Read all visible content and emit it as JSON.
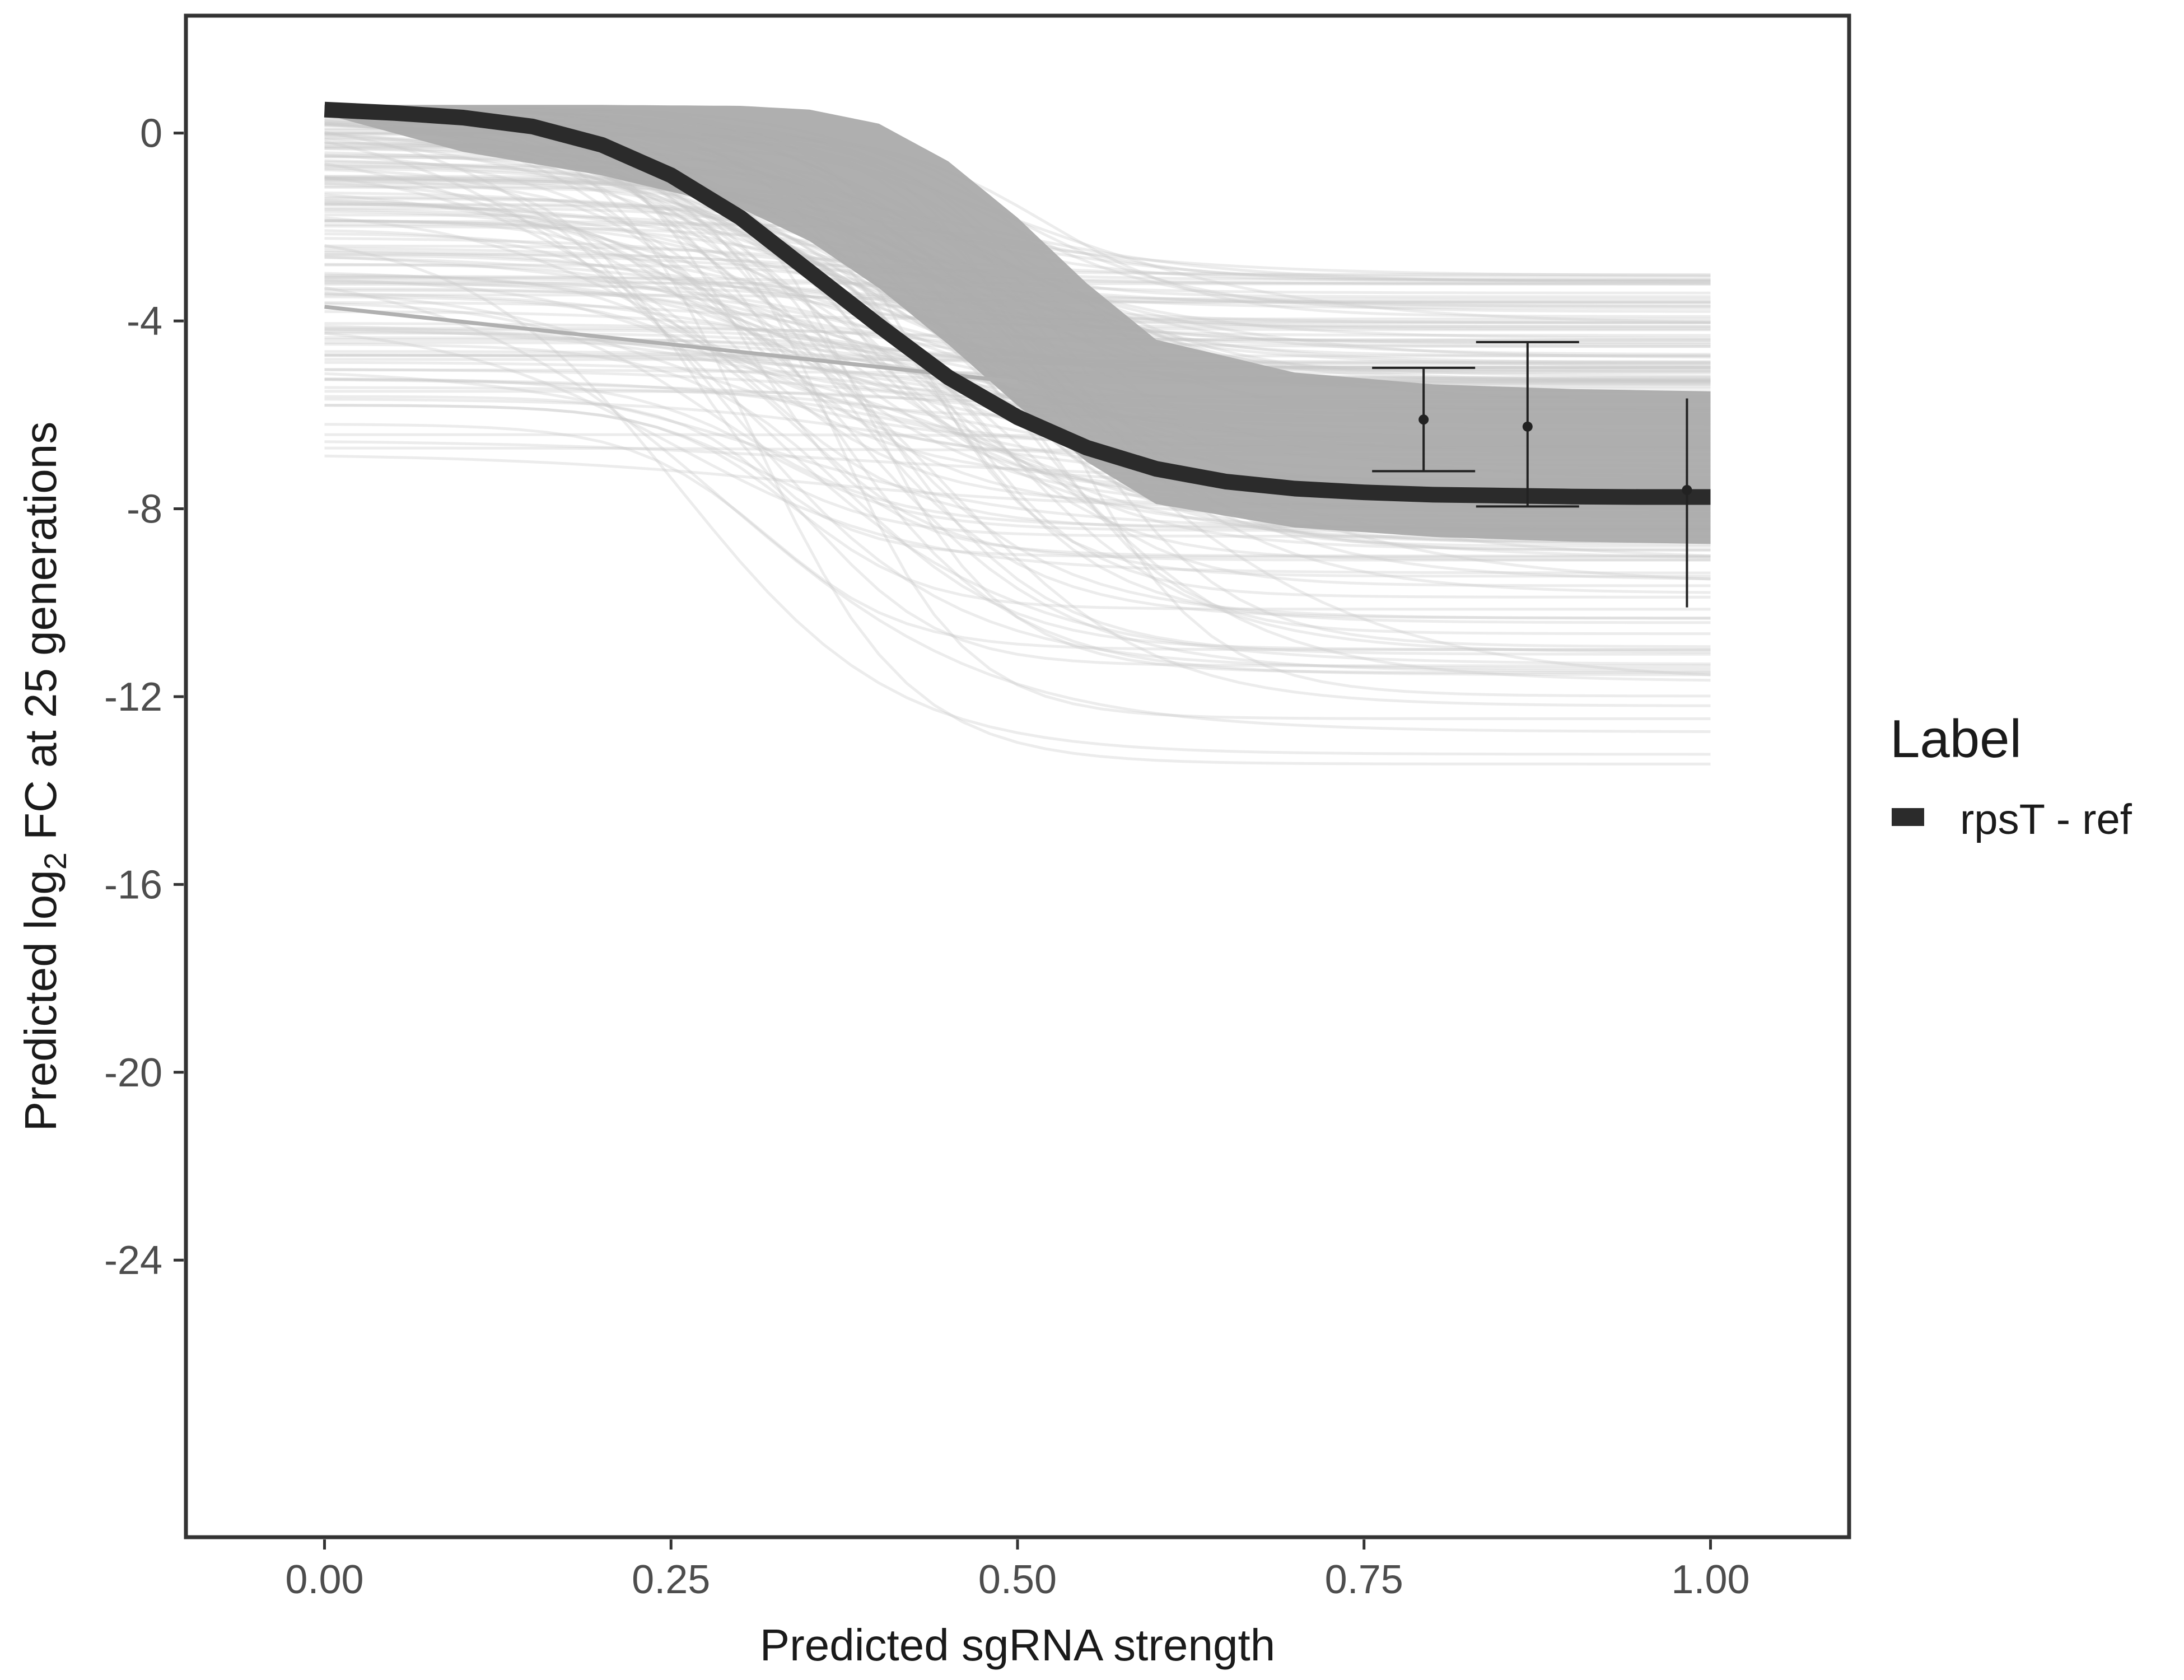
{
  "chart_data": {
    "type": "line",
    "title": "",
    "xlabel": "Predicted sgRNA strength",
    "ylabel": {
      "prefix": "Predicted  log",
      "subscript": "2",
      "suffix": " FC at 25 generations"
    },
    "xlim": [
      -0.1,
      1.1
    ],
    "ylim": [
      -29.9,
      2.5
    ],
    "xticks": [
      0,
      0.25,
      0.5,
      0.75,
      1.0
    ],
    "xtick_labels": [
      "0.00",
      "0.25",
      "0.50",
      "0.75",
      "1.00"
    ],
    "yticks": [
      0,
      -4,
      -8,
      -12,
      -16,
      -20,
      -24
    ],
    "ytick_labels": [
      "0",
      "-4",
      "-8",
      "-12",
      "-16",
      "-20",
      "-24"
    ],
    "grid": false,
    "legend": {
      "title": "Label",
      "position": "right",
      "entries": [
        {
          "label": "rpsT - ref",
          "color": "#2b2b2b"
        }
      ]
    },
    "main_curve": {
      "name": "rpsT - ref",
      "color": "#2b2b2b",
      "x": [
        0.0,
        0.05,
        0.1,
        0.15,
        0.2,
        0.25,
        0.3,
        0.35,
        0.4,
        0.45,
        0.5,
        0.55,
        0.6,
        0.65,
        0.7,
        0.75,
        0.8,
        0.85,
        0.9,
        0.95,
        1.0
      ],
      "y": [
        0.5,
        0.43,
        0.33,
        0.14,
        -0.25,
        -0.9,
        -1.8,
        -2.95,
        -4.1,
        -5.2,
        -6.05,
        -6.7,
        -7.15,
        -7.42,
        -7.57,
        -7.65,
        -7.7,
        -7.72,
        -7.74,
        -7.75,
        -7.75
      ]
    },
    "ribbon": {
      "color": "#ababab",
      "x": [
        0.0,
        0.1,
        0.2,
        0.3,
        0.35,
        0.4,
        0.45,
        0.5,
        0.55,
        0.6,
        0.7,
        0.8,
        0.9,
        1.0
      ],
      "upper": [
        0.6,
        0.6,
        0.6,
        0.58,
        0.5,
        0.2,
        -0.6,
        -1.8,
        -3.2,
        -4.4,
        -5.1,
        -5.35,
        -5.45,
        -5.5
      ],
      "lower": [
        0.4,
        -0.4,
        -0.9,
        -1.6,
        -2.3,
        -3.3,
        -4.5,
        -5.8,
        -7.0,
        -7.9,
        -8.4,
        -8.6,
        -8.7,
        -8.75
      ]
    },
    "posterior_draws": {
      "color": "#c8c8c8",
      "count": 170,
      "plateau_range": [
        -14.5,
        -3.0
      ],
      "start_range": [
        -7.5,
        0.6
      ],
      "midpoint_range": [
        0.25,
        0.55
      ]
    },
    "reference_line": {
      "x": [
        0.0,
        0.5
      ],
      "y": [
        -3.7,
        -5.3
      ],
      "color": "#b0b0b0"
    },
    "error_bars": [
      {
        "x": 0.793,
        "y": -6.1,
        "ymin": -7.2,
        "ymax": -5.0,
        "capped": true
      },
      {
        "x": 0.868,
        "y": -6.25,
        "ymin": -7.95,
        "ymax": -4.45,
        "capped": true
      },
      {
        "x": 0.983,
        "y": -7.6,
        "ymin": -10.1,
        "ymax": -5.65,
        "capped": false
      }
    ]
  }
}
